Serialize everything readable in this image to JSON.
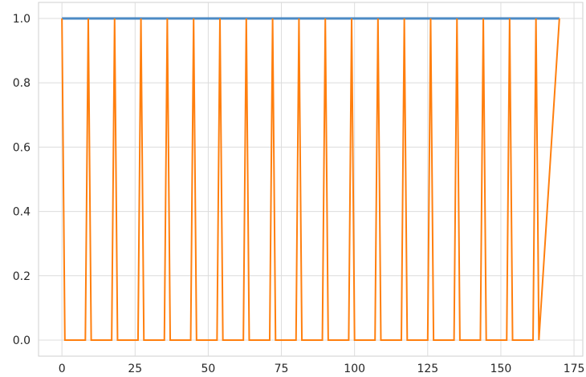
{
  "chart_data": {
    "type": "line",
    "title": "",
    "xlabel": "",
    "ylabel": "",
    "xlim": [
      -8,
      178
    ],
    "ylim": [
      -0.05,
      1.05
    ],
    "grid": true,
    "x_ticks": [
      0,
      25,
      50,
      75,
      100,
      125,
      150,
      175
    ],
    "x_tick_labels": [
      "0",
      "25",
      "50",
      "75",
      "100",
      "125",
      "150",
      "175"
    ],
    "y_ticks": [
      0.0,
      0.2,
      0.4,
      0.6,
      0.8,
      1.0
    ],
    "y_tick_labels": [
      "0.0",
      "0.2",
      "0.4",
      "0.6",
      "0.8",
      "1.0"
    ],
    "series": [
      {
        "color": "#4c8ac4",
        "x": [
          0,
          170
        ],
        "y": [
          1,
          1
        ]
      },
      {
        "color": "#ff7f0e",
        "x": [
          0,
          1,
          8,
          9,
          10,
          17,
          18,
          19,
          26,
          27,
          28,
          35,
          36,
          37,
          44,
          45,
          46,
          53,
          54,
          55,
          62,
          63,
          64,
          71,
          72,
          73,
          80,
          81,
          82,
          89,
          90,
          91,
          98,
          99,
          100,
          107,
          108,
          109,
          116,
          117,
          118,
          125,
          126,
          127,
          134,
          135,
          136,
          143,
          144,
          145,
          152,
          153,
          154,
          161,
          162,
          163,
          170
        ],
        "y": [
          1,
          0,
          0,
          1,
          0,
          0,
          1,
          0,
          0,
          1,
          0,
          0,
          1,
          0,
          0,
          1,
          0,
          0,
          1,
          0,
          0,
          1,
          0,
          0,
          1,
          0,
          0,
          1,
          0,
          0,
          1,
          0,
          0,
          1,
          0,
          0,
          1,
          0,
          0,
          1,
          0,
          0,
          1,
          0,
          0,
          1,
          0,
          0,
          1,
          0,
          0,
          1,
          0,
          0,
          1,
          0,
          1
        ]
      }
    ]
  }
}
